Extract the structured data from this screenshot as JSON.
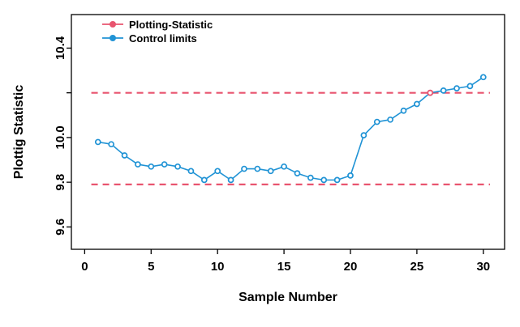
{
  "chart_data": {
    "type": "line",
    "title": "",
    "xlabel": "Sample Number",
    "ylabel": "Plottig Statistic",
    "x": [
      1,
      2,
      3,
      4,
      5,
      6,
      7,
      8,
      9,
      10,
      11,
      12,
      13,
      14,
      15,
      16,
      17,
      18,
      19,
      20,
      21,
      22,
      23,
      24,
      25,
      26,
      27,
      28,
      29,
      30
    ],
    "values": [
      9.98,
      9.97,
      9.92,
      9.88,
      9.87,
      9.88,
      9.87,
      9.85,
      9.81,
      9.85,
      9.81,
      9.86,
      9.86,
      9.85,
      9.87,
      9.84,
      9.82,
      9.81,
      9.81,
      9.83,
      10.01,
      10.07,
      10.08,
      10.12,
      10.15,
      10.2,
      10.21,
      10.22,
      10.23,
      10.27
    ],
    "series_name": "Control limits",
    "series_color": "#2093d5",
    "out_of_control_points": [
      {
        "x": 26,
        "y": 10.2
      }
    ],
    "control_limits": {
      "upper": 10.2,
      "lower": 9.79,
      "color": "#e8546f",
      "style": "dashed"
    },
    "xlim": [
      -1,
      31.6
    ],
    "ylim": [
      9.5,
      10.55
    ],
    "x_ticks": [
      {
        "v": 0,
        "label": "0"
      },
      {
        "v": 5,
        "label": "5"
      },
      {
        "v": 10,
        "label": "10"
      },
      {
        "v": 15,
        "label": "15"
      },
      {
        "v": 20,
        "label": "20"
      },
      {
        "v": 25,
        "label": "25"
      },
      {
        "v": 30,
        "label": "30"
      }
    ],
    "y_ticks": [
      {
        "v": 9.6,
        "label": "9.6"
      },
      {
        "v": 9.8,
        "label": "9.8"
      },
      {
        "v": 10.0,
        "label": "10.0"
      },
      {
        "v": 10.2,
        "label": ""
      },
      {
        "v": 10.4,
        "label": "10.4"
      }
    ],
    "legend": {
      "position": "top-left",
      "items": [
        {
          "label": "Plotting-Statistic",
          "color": "#e8546f"
        },
        {
          "label": "Control limits",
          "color": "#2093d5"
        }
      ]
    },
    "grid": false,
    "background": "#ffffff",
    "box_color": "#000000"
  }
}
